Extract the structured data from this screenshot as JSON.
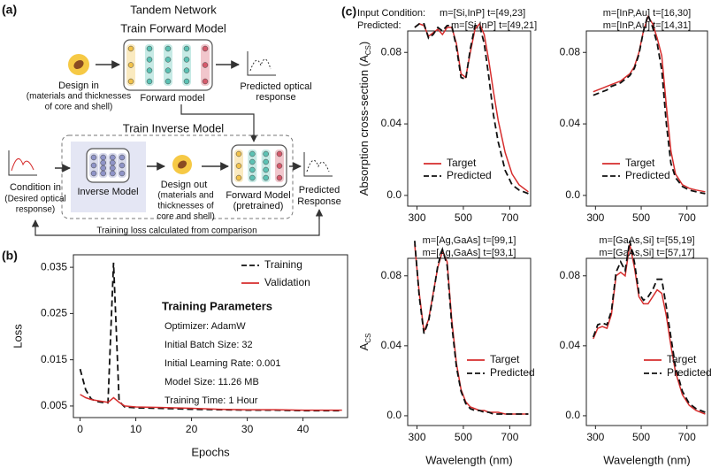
{
  "panel_labels": [
    "(a)",
    "(b)",
    "(c)"
  ],
  "diagram": {
    "title": "Tandem Network",
    "forward_section": "Train Forward Model",
    "design_in": "Design in",
    "design_in_note": [
      "(materials and thicknesses",
      "of core and shell)"
    ],
    "forward_model": "Forward model",
    "predicted_optical": [
      "Predicted optical",
      "response"
    ],
    "inverse_section": "Train Inverse Model",
    "condition_in": "Condition in",
    "condition_note": [
      "(Desired optical",
      "response)"
    ],
    "inverse_model": "Inverse Model",
    "design_out": "Design out",
    "design_out_note": [
      "(materials and",
      "thicknesses of",
      "core and shell)"
    ],
    "pretrained": [
      "Forward Model",
      "(pretrained)"
    ],
    "predicted_response": [
      "Predicted",
      "Response"
    ],
    "feedback": "Training loss calculated from comparison"
  },
  "chart_data": [
    {
      "type": "line",
      "x_label": "Epochs",
      "y_label": "Loss",
      "x": [
        0,
        1,
        2,
        3,
        4,
        5,
        6,
        7,
        8,
        10,
        14,
        20,
        25,
        30,
        35,
        40,
        47
      ],
      "series": [
        {
          "name": "Training",
          "color": "#111111",
          "dashed": true,
          "values": [
            0.013,
            0.0085,
            0.0065,
            0.006,
            0.0058,
            0.0057,
            0.036,
            0.006,
            0.0048,
            0.0046,
            0.0045,
            0.0043,
            0.0042,
            0.0041,
            0.0041,
            0.004,
            0.004
          ]
        },
        {
          "name": "Validation",
          "color": "#d62d2d",
          "dashed": false,
          "values": [
            0.0075,
            0.0068,
            0.0064,
            0.0062,
            0.006,
            0.0058,
            0.0068,
            0.0058,
            0.005,
            0.0048,
            0.0047,
            0.0045,
            0.0043,
            0.0042,
            0.0042,
            0.0041,
            0.0041
          ]
        }
      ],
      "xlim": [
        -1.2,
        48
      ],
      "ylim": [
        0.0025,
        0.0377
      ],
      "xticks": [
        0,
        10,
        20,
        30,
        40
      ],
      "yticks": [
        0.005,
        0.015,
        0.025,
        0.035
      ],
      "legend": "upper right",
      "annotation_title": "Training Parameters",
      "annotation_lines": [
        "Optimizer: AdamW",
        "Initial Batch Size: 32",
        "Initial Learning Rate: 0.001",
        "Model Size: 11.26 MB",
        "Training Time: 1 Hour"
      ]
    },
    {
      "type": "line",
      "y_label_parts": [
        "Absorption cross-section (A",
        "CS",
        ")"
      ],
      "target_prefix": "Input Condition:",
      "target_label": "m=[Si,InP] t=[49,23]",
      "predicted_prefix": "Predicted:",
      "predicted_label": "m=[Si,InP] t=[49,21]",
      "x": [
        290,
        310,
        330,
        350,
        370,
        390,
        410,
        430,
        450,
        470,
        490,
        510,
        530,
        550,
        570,
        590,
        610,
        630,
        650,
        680,
        710,
        740,
        780
      ],
      "series": [
        {
          "name": "Target",
          "color": "#d62d2d",
          "dashed": false,
          "values": [
            0.094,
            0.096,
            0.095,
            0.089,
            0.091,
            0.093,
            0.09,
            0.094,
            0.094,
            0.085,
            0.068,
            0.066,
            0.08,
            0.093,
            0.096,
            0.09,
            0.075,
            0.058,
            0.042,
            0.024,
            0.012,
            0.006,
            0.002
          ]
        },
        {
          "name": "Predicted",
          "color": "#111111",
          "dashed": true,
          "values": [
            0.094,
            0.096,
            0.096,
            0.088,
            0.09,
            0.094,
            0.092,
            0.095,
            0.095,
            0.083,
            0.066,
            0.065,
            0.082,
            0.095,
            0.095,
            0.085,
            0.066,
            0.045,
            0.03,
            0.014,
            0.006,
            0.003,
            0.001
          ]
        }
      ],
      "xlim": [
        260,
        790
      ],
      "ylim": [
        -0.006,
        0.092
      ],
      "xticks": [
        300,
        500,
        700
      ],
      "yticks": [
        {
          "value": 0,
          "label": "0.0"
        },
        0.04,
        0.08
      ],
      "legend": "lower center"
    },
    {
      "type": "line",
      "target_label": "m=[InP,Au] t=[16,30]",
      "predicted_label": "m=[InP,Au] t=[14,31]",
      "x": [
        290,
        310,
        330,
        350,
        370,
        390,
        410,
        430,
        450,
        470,
        490,
        510,
        530,
        550,
        570,
        590,
        610,
        630,
        650,
        680,
        710,
        740,
        780
      ],
      "series": [
        {
          "name": "Target",
          "color": "#d62d2d",
          "dashed": false,
          "values": [
            0.058,
            0.059,
            0.06,
            0.061,
            0.062,
            0.063,
            0.064,
            0.066,
            0.068,
            0.072,
            0.08,
            0.092,
            0.1,
            0.096,
            0.088,
            0.078,
            0.05,
            0.025,
            0.012,
            0.006,
            0.004,
            0.003,
            0.002
          ]
        },
        {
          "name": "Predicted",
          "color": "#111111",
          "dashed": true,
          "values": [
            0.056,
            0.057,
            0.058,
            0.059,
            0.061,
            0.062,
            0.063,
            0.065,
            0.067,
            0.071,
            0.079,
            0.092,
            0.101,
            0.094,
            0.085,
            0.07,
            0.04,
            0.018,
            0.01,
            0.005,
            0.003,
            0.002,
            0.001
          ]
        }
      ],
      "xlim": [
        260,
        790
      ],
      "ylim": [
        -0.006,
        0.092
      ],
      "xticks": [
        300,
        500,
        700
      ],
      "yticks": [
        {
          "value": 0,
          "label": "0.0"
        },
        0.04,
        0.08
      ],
      "legend": "lower center"
    },
    {
      "type": "line",
      "y_label_parts": [
        "A",
        "CS"
      ],
      "x_label": "Wavelength (nm)",
      "target_label": "m=[Ag,GaAs] t=[99,1]",
      "predicted_label": "m=[Ag,GaAs] t=[93,1]",
      "x": [
        290,
        310,
        330,
        350,
        370,
        390,
        410,
        430,
        450,
        470,
        490,
        510,
        530,
        550,
        570,
        590,
        610,
        630,
        650,
        680,
        710,
        740,
        780
      ],
      "series": [
        {
          "name": "Target",
          "color": "#d62d2d",
          "dashed": false,
          "values": [
            0.098,
            0.07,
            0.048,
            0.055,
            0.07,
            0.085,
            0.094,
            0.088,
            0.055,
            0.03,
            0.015,
            0.008,
            0.005,
            0.004,
            0.003,
            0.003,
            0.002,
            0.002,
            0.002,
            0.001,
            0.001,
            0.001,
            0.001
          ]
        },
        {
          "name": "Predicted",
          "color": "#111111",
          "dashed": true,
          "values": [
            0.1,
            0.068,
            0.047,
            0.054,
            0.069,
            0.086,
            0.095,
            0.086,
            0.052,
            0.028,
            0.014,
            0.007,
            0.004,
            0.003,
            0.003,
            0.002,
            0.002,
            0.001,
            0.001,
            0.001,
            0.001,
            0.001,
            0.001
          ]
        }
      ],
      "xlim": [
        260,
        790
      ],
      "ylim": [
        -0.0056,
        0.09
      ],
      "xticks": [
        300,
        500,
        700
      ],
      "yticks": [
        {
          "value": 0,
          "label": "0.0"
        },
        0.04,
        0.08
      ],
      "legend": "lower right"
    },
    {
      "type": "line",
      "x_label": "Wavelength (nm)",
      "target_label": "m=[GaAs,Si] t=[55,19]",
      "predicted_label": "m=[GaAs,Si] t=[57,17]",
      "x": [
        290,
        310,
        330,
        350,
        370,
        390,
        410,
        430,
        450,
        470,
        490,
        510,
        530,
        550,
        570,
        590,
        610,
        630,
        650,
        680,
        710,
        740,
        780
      ],
      "series": [
        {
          "name": "Target",
          "color": "#d62d2d",
          "dashed": false,
          "values": [
            0.044,
            0.05,
            0.051,
            0.05,
            0.058,
            0.08,
            0.082,
            0.08,
            0.098,
            0.085,
            0.068,
            0.064,
            0.064,
            0.068,
            0.072,
            0.07,
            0.057,
            0.04,
            0.025,
            0.012,
            0.006,
            0.003,
            0.001
          ]
        },
        {
          "name": "Predicted",
          "color": "#111111",
          "dashed": true,
          "values": [
            0.045,
            0.052,
            0.053,
            0.052,
            0.06,
            0.082,
            0.088,
            0.083,
            0.1,
            0.088,
            0.07,
            0.066,
            0.068,
            0.072,
            0.078,
            0.078,
            0.062,
            0.045,
            0.028,
            0.014,
            0.007,
            0.004,
            0.002
          ]
        }
      ],
      "xlim": [
        260,
        790
      ],
      "ylim": [
        -0.0056,
        0.09
      ],
      "xticks": [
        300,
        500,
        700
      ],
      "yticks": [
        {
          "value": 0,
          "label": "0.0"
        },
        0.04,
        0.08
      ],
      "legend": "lower right"
    }
  ]
}
